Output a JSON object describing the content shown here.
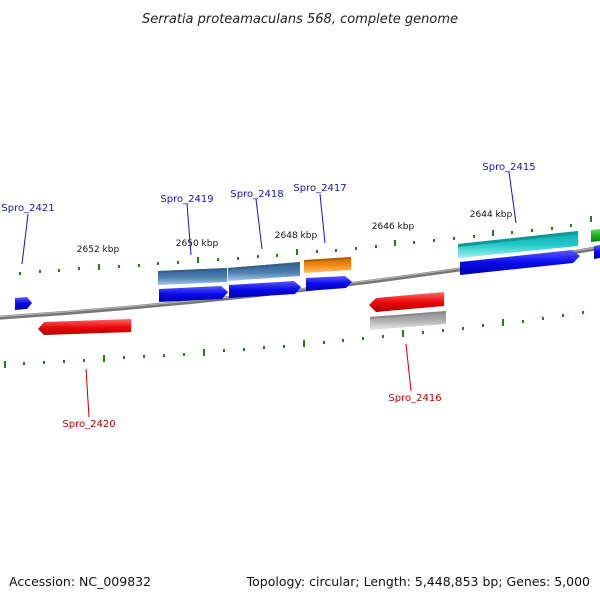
{
  "title": "Serratia proteamaculans 568, complete genome",
  "accession": "Accession: NC_009832",
  "topology": "Topology: circular; Length: 5,448,853 bp; Genes: 5,000",
  "scale_labels": [
    "2652 kbp",
    "2650 kbp",
    "2648 kbp",
    "2646 kbp",
    "2644 kbp"
  ],
  "gene_labels": [
    "Spro_2421",
    "Spro_2419",
    "Spro_2418",
    "Spro_2417",
    "Spro_2415",
    "Spro_2420",
    "Spro_2416"
  ],
  "colors": {
    "blue": "#0a0aee",
    "red": "#ee0a0a",
    "steelblue": "#4a7fb0",
    "orange": "#f08a10",
    "cyan": "#20c8c8",
    "gray": "#b0b0b0",
    "green": "#20b020",
    "tick_green": "#2a7a1a",
    "backbone": "#808080"
  }
}
